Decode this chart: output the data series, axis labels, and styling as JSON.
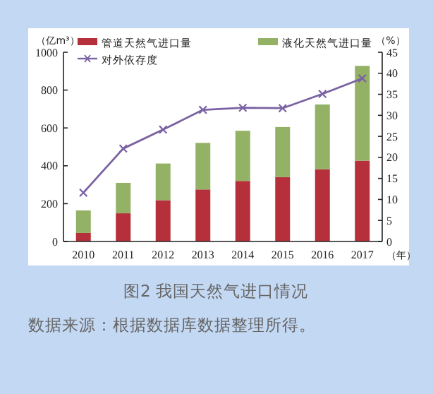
{
  "chart_data": {
    "type": "bar",
    "stacked": true,
    "title": "图2 我国天然气进口情况",
    "annotations": [
      "数据来源：根据数据库数据整理所得。"
    ],
    "xlabel": "（年）",
    "ylabel": "（亿m³）",
    "y2label": "（%）",
    "categories": [
      "2010",
      "2011",
      "2012",
      "2013",
      "2014",
      "2015",
      "2016",
      "2017"
    ],
    "series": [
      {
        "name": "管道天然气进口量",
        "color": "#b5303a",
        "values": [
          45,
          149,
          218,
          275,
          320,
          340,
          382,
          427
        ]
      },
      {
        "name": "液化天然气进口量",
        "color": "#93b266",
        "values": [
          119,
          161,
          194,
          246,
          265,
          265,
          342,
          501
        ]
      },
      {
        "name": "对外依存度",
        "type": "line",
        "axis": "y2",
        "color": "#7a62a3",
        "marker": "cross",
        "values": [
          11.6,
          22.1,
          26.6,
          31.3,
          31.8,
          31.7,
          35.1,
          38.8
        ]
      }
    ],
    "ylim": [
      0,
      1000
    ],
    "yticks": [
      0,
      200,
      400,
      600,
      800,
      1000
    ],
    "y2lim": [
      0,
      45
    ],
    "y2ticks": [
      0,
      5,
      10,
      15,
      20,
      25,
      30,
      35,
      40,
      45
    ],
    "legend": "top",
    "grid": false
  }
}
